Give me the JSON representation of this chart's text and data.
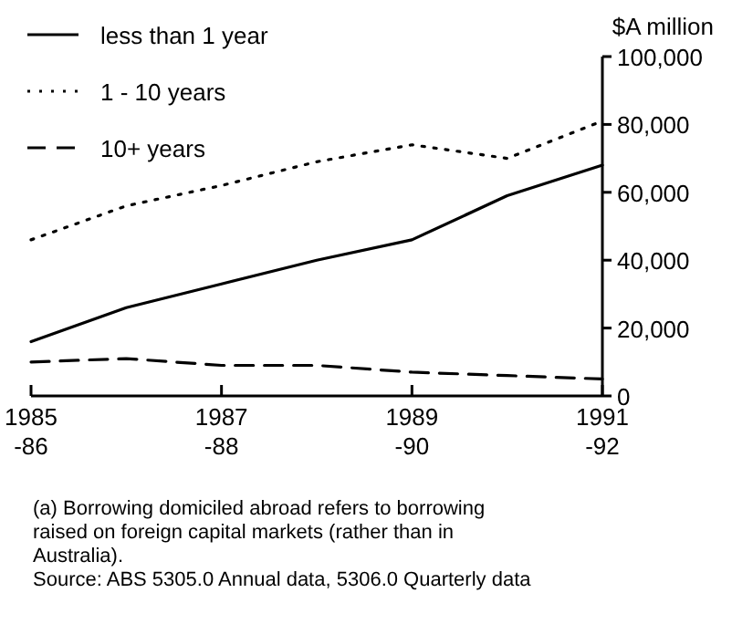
{
  "chart_data": {
    "type": "line",
    "ylabel": "$A million",
    "categories": [
      "1985\n-86",
      null,
      "1987\n-88",
      null,
      "1989\n-90",
      null,
      "1991\n-92"
    ],
    "series": [
      {
        "name": "less than 1 year",
        "color": "#000000",
        "line_style": "solid",
        "values": [
          16000,
          26000,
          33000,
          40000,
          46000,
          59000,
          68000
        ]
      },
      {
        "name": "1 - 10 years",
        "color": "#000000",
        "line_style": "dotted",
        "values": [
          46000,
          56000,
          62000,
          69000,
          74000,
          70000,
          81000
        ]
      },
      {
        "name": "10+ years",
        "color": "#000000",
        "line_style": "dashed",
        "values": [
          10000,
          11000,
          9000,
          9000,
          7000,
          6000,
          5000
        ]
      }
    ],
    "ylim": [
      0,
      100000
    ],
    "yticks": [
      {
        "value": 0,
        "label": "0"
      },
      {
        "value": 20000,
        "label": "20,000"
      },
      {
        "value": 40000,
        "label": "40,000"
      },
      {
        "value": 60000,
        "label": "60,000"
      },
      {
        "value": 80000,
        "label": "80,000"
      },
      {
        "value": 100000,
        "label": "100,000"
      }
    ],
    "grid": false,
    "legend": "top left",
    "marker": "none",
    "annotations": [
      "(a) Borrowing domiciled abroad refers to borrowing raised on foreign capital markets (rather than in Australia).",
      "Source: ABS 5305.0 Annual data, 5306.0 Quarterly data"
    ]
  }
}
